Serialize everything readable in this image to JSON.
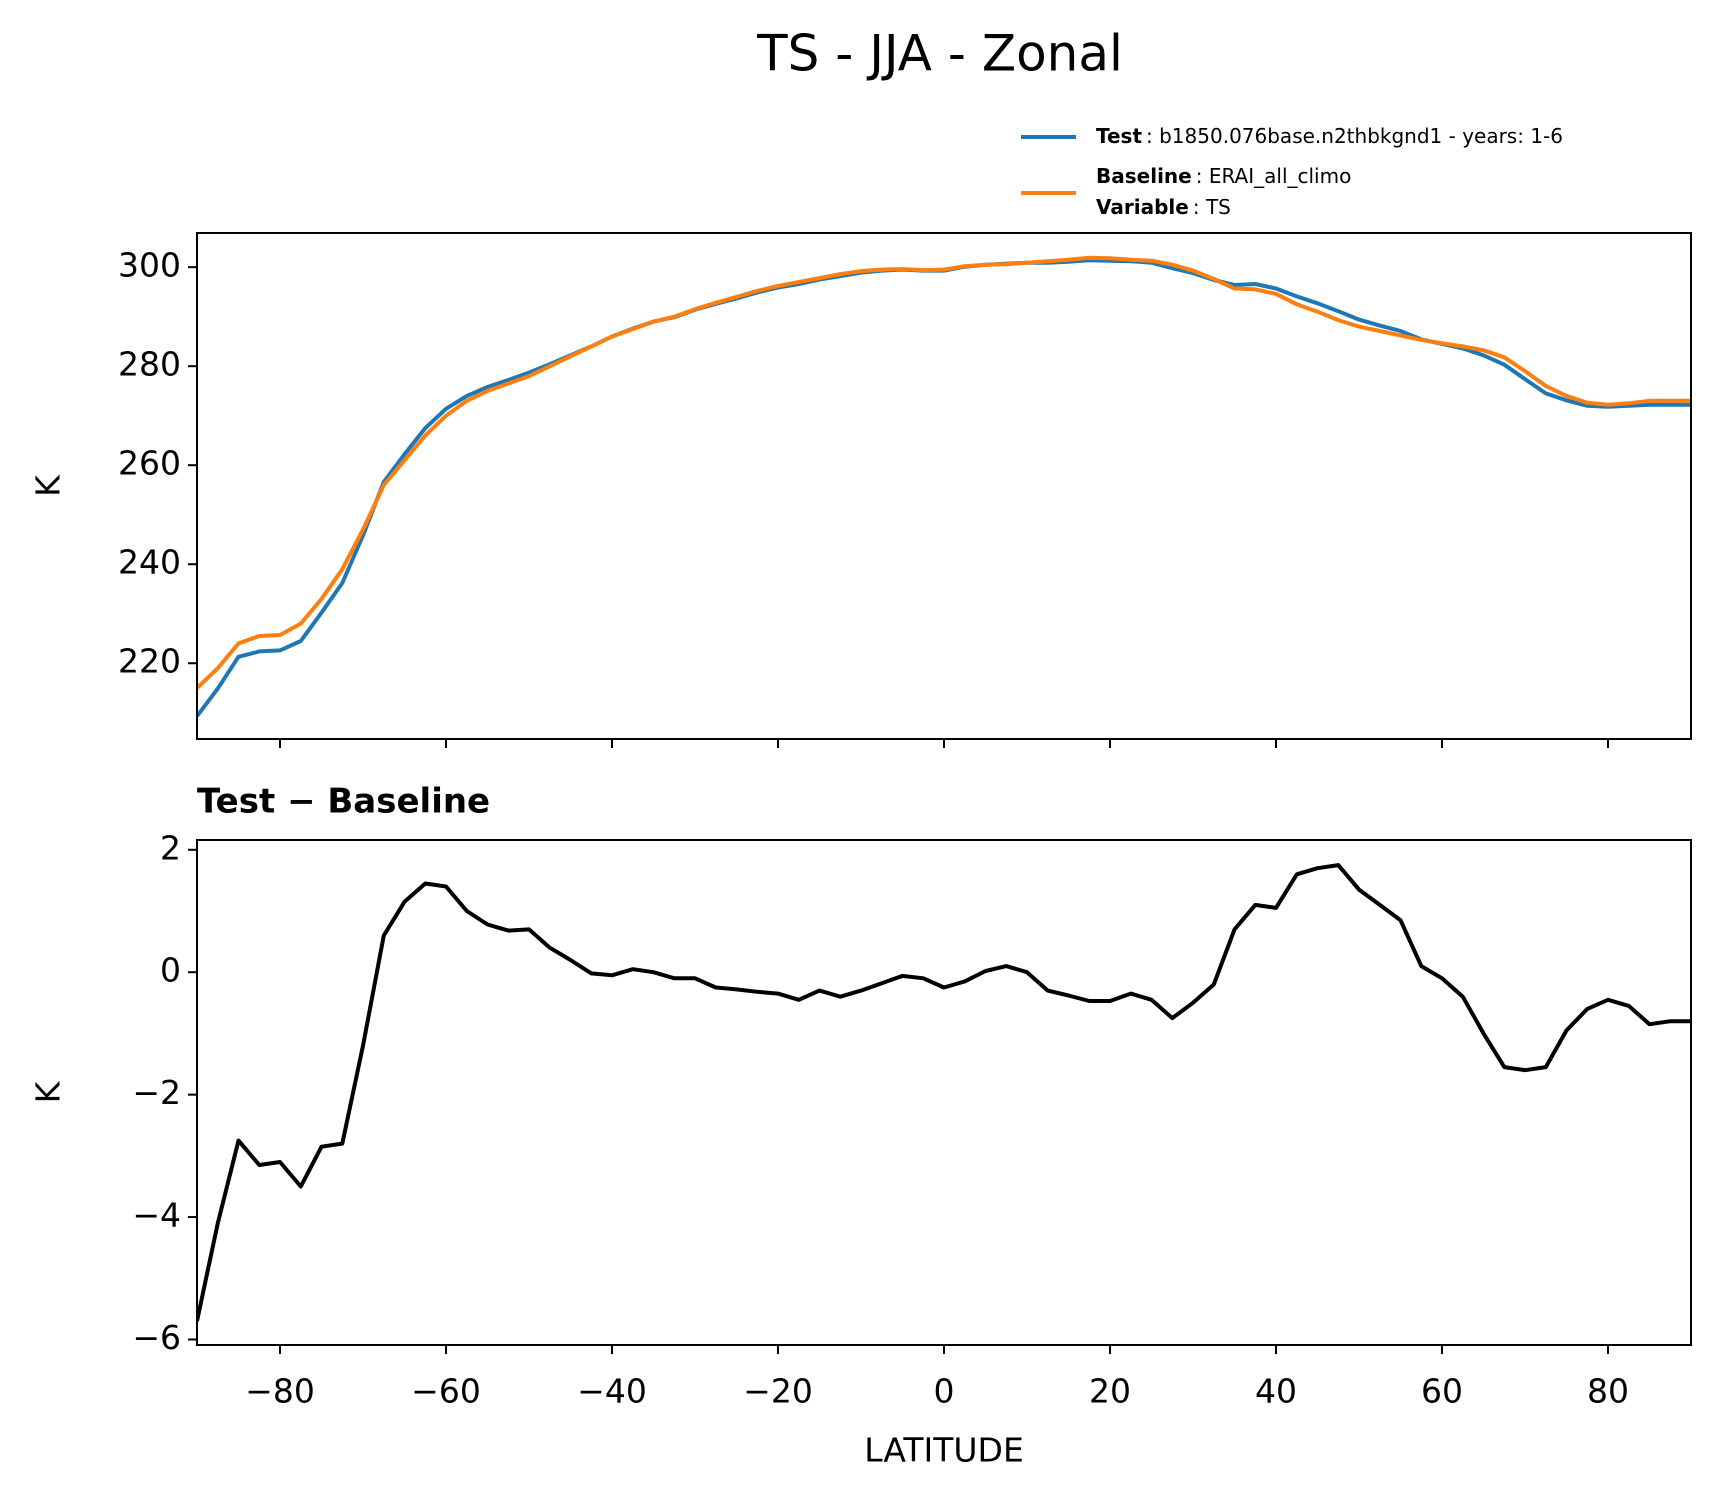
{
  "title": "TS - JJA - Zonal",
  "chart_data": [
    {
      "type": "line",
      "ylabel": "K",
      "ylim": [
        204.7,
        306.9
      ],
      "yticks": [
        220,
        240,
        260,
        280,
        300
      ],
      "series": [
        {
          "name": "Test",
          "desc": ": b1850.076base.n2thbkgnd1 - years: 1-6",
          "color": "#1f77b4",
          "values": [
            209.3,
            214.9,
            221.3,
            222.4,
            222.6,
            224.5,
            230.2,
            236.2,
            245.8,
            256.6,
            262.2,
            267.5,
            271.4,
            274.0,
            275.8,
            277.2,
            278.7,
            280.4,
            282.2,
            284.0,
            286.0,
            287.6,
            289.0,
            289.9,
            291.4,
            292.6,
            293.7,
            294.9,
            295.9,
            296.6,
            297.5,
            298.2,
            298.9,
            299.3,
            299.5,
            299.3,
            299.3,
            300.1,
            300.5,
            300.7,
            300.9,
            300.9,
            301.1,
            301.4,
            301.3,
            301.2,
            300.9,
            299.8,
            298.8,
            297.4,
            296.4,
            296.6,
            295.7,
            294.1,
            292.7,
            291.1,
            289.4,
            288.2,
            287.1,
            285.4,
            284.5,
            283.6,
            282.2,
            280.3,
            277.4,
            274.5,
            273.1,
            272.0,
            271.8,
            272.0,
            272.2,
            272.2,
            272.2
          ]
        },
        {
          "name": "Baseline",
          "desc": ": ERAI_all_climo",
          "color": "#ff7f0e",
          "values": [
            215,
            219,
            224,
            225.5,
            225.7,
            228,
            233,
            239,
            247,
            256,
            261,
            266,
            270,
            273,
            275,
            276.5,
            278,
            280,
            282,
            284,
            286,
            287.5,
            289,
            290,
            291.5,
            292.8,
            294,
            295.2,
            296.2,
            297,
            297.8,
            298.6,
            299.2,
            299.5,
            299.6,
            299.4,
            299.5,
            300.2,
            300.5,
            300.6,
            300.9,
            301.2,
            301.5,
            301.9,
            301.8,
            301.5,
            301.3,
            300.5,
            299.3,
            297.6,
            295.7,
            295.5,
            294.6,
            292.5,
            291,
            289.3,
            288,
            287.1,
            286.2,
            285.3,
            284.6,
            284,
            283.2,
            281.8,
            279,
            276,
            274,
            272.6,
            272.2,
            272.5,
            273,
            273,
            273
          ]
        }
      ],
      "legend_extra": {
        "name": "Variable",
        "desc": ": TS"
      }
    },
    {
      "type": "line",
      "title": "Test − Baseline",
      "ylabel": "K",
      "xlabel": "LATITUDE",
      "xlim": [
        -90,
        90
      ],
      "xticks": [
        {
          "value": -80,
          "label": "−80"
        },
        {
          "value": -60,
          "label": "−60"
        },
        {
          "value": -40,
          "label": "−40"
        },
        {
          "value": -20,
          "label": "−20"
        },
        0,
        20,
        40,
        60,
        80
      ],
      "ylim": [
        -6.09,
        2.16
      ],
      "yticks": [
        {
          "value": -6,
          "label": "−6"
        },
        {
          "value": -4,
          "label": "−4"
        },
        {
          "value": -2,
          "label": "−2"
        },
        0,
        2
      ],
      "x": [
        -90,
        -87.5,
        -85,
        -82.5,
        -80,
        -77.5,
        -75,
        -72.5,
        -70,
        -67.5,
        -65,
        -62.5,
        -60,
        -57.5,
        -55,
        -52.5,
        -50,
        -47.5,
        -45,
        -42.5,
        -40,
        -37.5,
        -35,
        -32.5,
        -30,
        -27.5,
        -25,
        -22.5,
        -20,
        -17.5,
        -15,
        -12.5,
        -10,
        -7.5,
        -5,
        -2.5,
        0,
        2.5,
        5,
        7.5,
        10,
        12.5,
        15,
        17.5,
        20,
        22.5,
        25,
        27.5,
        30,
        32.5,
        35,
        37.5,
        40,
        42.5,
        45,
        47.5,
        50,
        52.5,
        55,
        57.5,
        60,
        62.5,
        65,
        67.5,
        70,
        72.5,
        75,
        77.5,
        80,
        82.5,
        85,
        87.5,
        90
      ],
      "series": [
        {
          "color": "#000000",
          "values": [
            -5.7,
            -4.1,
            -2.75,
            -3.15,
            -3.1,
            -3.5,
            -2.85,
            -2.8,
            -1.2,
            0.6,
            1.15,
            1.45,
            1.4,
            1.0,
            0.78,
            0.68,
            0.7,
            0.4,
            0.2,
            -0.02,
            -0.05,
            0.05,
            0.0,
            -0.1,
            -0.1,
            -0.25,
            -0.28,
            -0.32,
            -0.35,
            -0.45,
            -0.3,
            -0.4,
            -0.3,
            -0.18,
            -0.06,
            -0.1,
            -0.25,
            -0.15,
            0.02,
            0.1,
            0.0,
            -0.3,
            -0.38,
            -0.47,
            -0.47,
            -0.35,
            -0.45,
            -0.75,
            -0.5,
            -0.2,
            0.7,
            1.1,
            1.05,
            1.6,
            1.7,
            1.75,
            1.35,
            1.1,
            0.85,
            0.1,
            -0.1,
            -0.4,
            -1.0,
            -1.55,
            -1.6,
            -1.55,
            -0.95,
            -0.6,
            -0.45,
            -0.55,
            -0.85,
            -0.8,
            -0.8
          ]
        }
      ]
    }
  ]
}
